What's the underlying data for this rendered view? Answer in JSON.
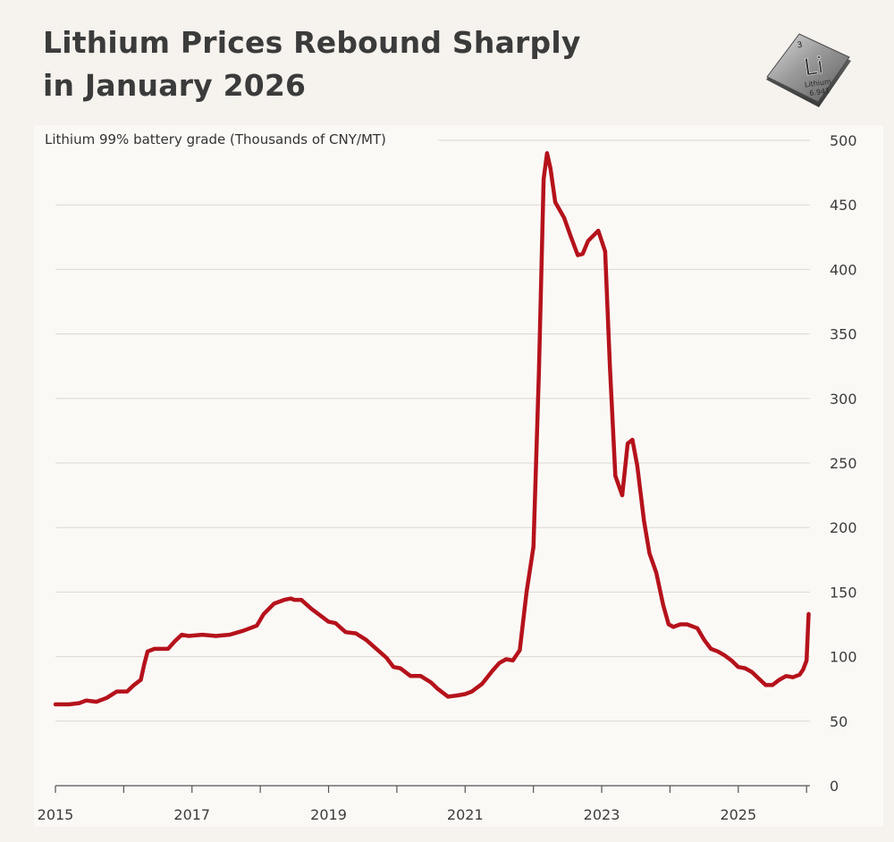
{
  "title_lines": [
    "Lithium Prices Rebound Sharply",
    "in January 2026"
  ],
  "badge": {
    "atomic_number": "3",
    "symbol": "Li",
    "name": "Lithium",
    "mass": "6.941",
    "icon": "lithium-element-tile-icon"
  },
  "colors": {
    "background": "#f6f3ee",
    "plot_background": "#fbf9f6",
    "line": "#b5121b",
    "grid": "#dcd8d2",
    "text": "#3b3b3b"
  },
  "chart_data": {
    "type": "line",
    "title": "Lithium Prices Rebound Sharply in January 2026",
    "subtitle": "Lithium 99% battery grade (Thousands of CNY/MT)",
    "xlabel": "",
    "ylabel": "Lithium 99% battery grade (Thousands of CNY/MT)",
    "xlim": [
      2015.0,
      2026.05
    ],
    "ylim": [
      0,
      500
    ],
    "y_axis_position": "right",
    "grid": "horizontal",
    "x_ticks": [
      2015,
      2016,
      2017,
      2018,
      2019,
      2020,
      2021,
      2022,
      2023,
      2024,
      2025,
      2026
    ],
    "x_tick_labels": [
      {
        "x": 2015,
        "label": "2015"
      },
      {
        "x": 2017,
        "label": "2017"
      },
      {
        "x": 2019,
        "label": "2019"
      },
      {
        "x": 2021,
        "label": "2021"
      },
      {
        "x": 2023,
        "label": "2023"
      },
      {
        "x": 2025,
        "label": "2025"
      }
    ],
    "y_ticks": [
      0,
      50,
      100,
      150,
      200,
      250,
      300,
      350,
      400,
      450,
      500
    ],
    "y_tick_labels": [
      "0",
      "50",
      "100",
      "150",
      "200",
      "250",
      "300",
      "350",
      "400",
      "450",
      "500"
    ],
    "series": [
      {
        "name": "Lithium 99% battery grade",
        "x": [
          2015.0,
          2015.2,
          2015.35,
          2015.45,
          2015.6,
          2015.75,
          2015.9,
          2016.05,
          2016.15,
          2016.25,
          2016.3,
          2016.35,
          2016.45,
          2016.55,
          2016.65,
          2016.75,
          2016.85,
          2016.95,
          2017.15,
          2017.35,
          2017.55,
          2017.75,
          2017.85,
          2017.95,
          2018.05,
          2018.2,
          2018.35,
          2018.45,
          2018.5,
          2018.6,
          2018.75,
          2018.9,
          2019.0,
          2019.1,
          2019.25,
          2019.4,
          2019.55,
          2019.7,
          2019.85,
          2019.95,
          2020.05,
          2020.2,
          2020.35,
          2020.5,
          2020.6,
          2020.75,
          2020.9,
          2021.0,
          2021.1,
          2021.25,
          2021.4,
          2021.5,
          2021.6,
          2021.7,
          2021.8,
          2021.9,
          2022.0,
          2022.08,
          2022.15,
          2022.2,
          2022.25,
          2022.32,
          2022.45,
          2022.55,
          2022.65,
          2022.72,
          2022.8,
          2022.95,
          2023.05,
          2023.12,
          2023.2,
          2023.3,
          2023.38,
          2023.45,
          2023.52,
          2023.62,
          2023.7,
          2023.8,
          2023.9,
          2023.98,
          2024.05,
          2024.15,
          2024.25,
          2024.4,
          2024.5,
          2024.6,
          2024.7,
          2024.8,
          2024.9,
          2025.0,
          2025.1,
          2025.2,
          2025.3,
          2025.4,
          2025.5,
          2025.6,
          2025.7,
          2025.8,
          2025.9,
          2025.95,
          2026.0,
          2026.03
        ],
        "y": [
          63,
          63,
          64,
          66,
          65,
          68,
          73,
          73,
          78,
          82,
          94,
          104,
          106,
          106,
          106,
          112,
          117,
          116,
          117,
          116,
          117,
          120,
          122,
          124,
          133,
          141,
          144,
          145,
          144,
          144,
          137,
          131,
          127,
          126,
          119,
          118,
          113,
          106,
          99,
          92,
          91,
          85,
          85,
          80,
          75,
          69,
          70,
          71,
          73,
          79,
          89,
          95,
          98,
          97,
          105,
          150,
          185,
          320,
          470,
          490,
          478,
          452,
          440,
          425,
          411,
          412,
          422,
          430,
          414,
          325,
          240,
          225,
          265,
          268,
          248,
          205,
          180,
          165,
          140,
          125,
          123,
          125,
          125,
          122,
          113,
          106,
          104,
          101,
          97,
          92,
          91,
          88,
          83,
          78,
          78,
          82,
          85,
          84,
          86,
          90,
          97,
          133
        ]
      }
    ]
  }
}
